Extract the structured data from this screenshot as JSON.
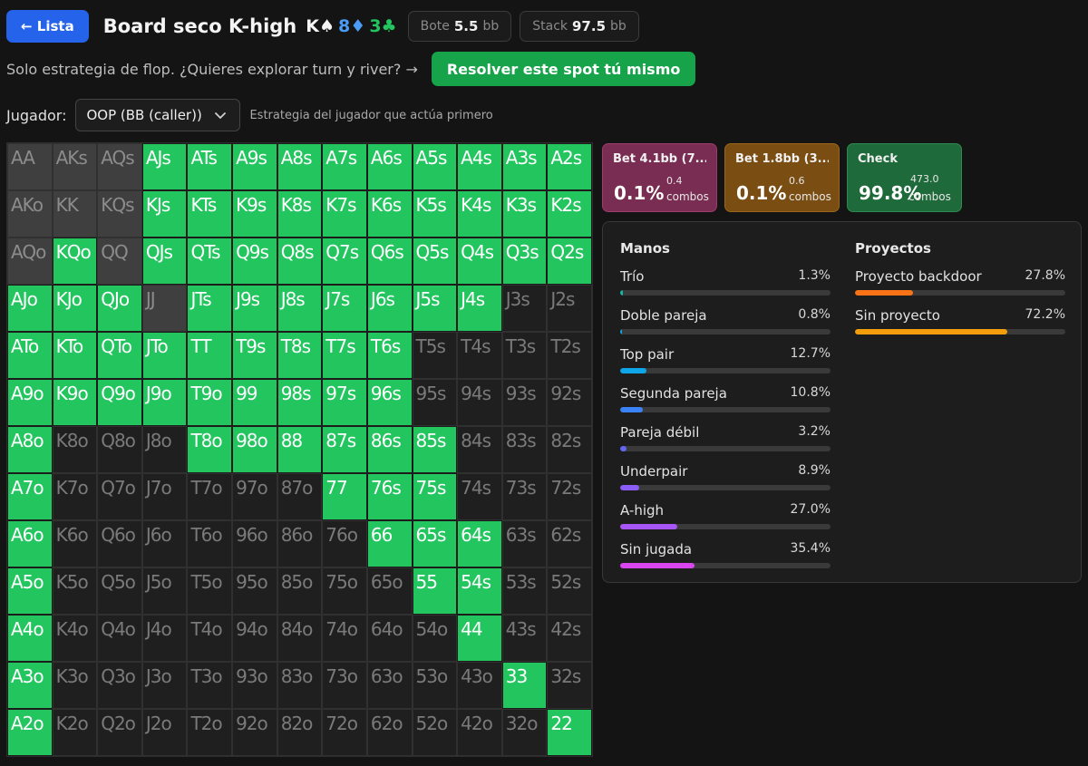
{
  "header": {
    "back_label": "← Lista",
    "title": "Board seco K-high",
    "board": [
      {
        "rank": "K",
        "suit": "♠"
      },
      {
        "rank": "8",
        "suit": "♦"
      },
      {
        "rank": "3",
        "suit": "♣"
      }
    ],
    "pot_label": "Bote",
    "pot_value": "5.5",
    "pot_unit": "bb",
    "stack_label": "Stack",
    "stack_value": "97.5",
    "stack_unit": "bb"
  },
  "promo": {
    "text": "Solo estrategia de flop. ¿Quieres explorar turn y river? →",
    "button_label": "Resolver este spot tú mismo"
  },
  "player": {
    "label": "Jugador:",
    "selected": "OOP (BB (caller))",
    "hint": "Estrategia del jugador que actúa primero"
  },
  "matrix": {
    "rows": [
      [
        [
          "AA",
          "p"
        ],
        [
          "AKs",
          "p"
        ],
        [
          "AQs",
          "p"
        ],
        [
          "AJs",
          "g"
        ],
        [
          "ATs",
          "g"
        ],
        [
          "A9s",
          "g"
        ],
        [
          "A8s",
          "g"
        ],
        [
          "A7s",
          "g"
        ],
        [
          "A6s",
          "g"
        ],
        [
          "A5s",
          "g"
        ],
        [
          "A4s",
          "g"
        ],
        [
          "A3s",
          "g"
        ],
        [
          "A2s",
          "g"
        ]
      ],
      [
        [
          "AKo",
          "p"
        ],
        [
          "KK",
          "p"
        ],
        [
          "KQs",
          "p"
        ],
        [
          "KJs",
          "g"
        ],
        [
          "KTs",
          "g"
        ],
        [
          "K9s",
          "g"
        ],
        [
          "K8s",
          "g"
        ],
        [
          "K7s",
          "g"
        ],
        [
          "K6s",
          "g"
        ],
        [
          "K5s",
          "g"
        ],
        [
          "K4s",
          "g"
        ],
        [
          "K3s",
          "g"
        ],
        [
          "K2s",
          "g"
        ]
      ],
      [
        [
          "AQo",
          "p"
        ],
        [
          "KQo",
          "g"
        ],
        [
          "QQ",
          "p"
        ],
        [
          "QJs",
          "g"
        ],
        [
          "QTs",
          "g"
        ],
        [
          "Q9s",
          "g"
        ],
        [
          "Q8s",
          "g"
        ],
        [
          "Q7s",
          "g"
        ],
        [
          "Q6s",
          "g"
        ],
        [
          "Q5s",
          "g"
        ],
        [
          "Q4s",
          "g"
        ],
        [
          "Q3s",
          "g"
        ],
        [
          "Q2s",
          "g"
        ]
      ],
      [
        [
          "AJo",
          "g"
        ],
        [
          "KJo",
          "g"
        ],
        [
          "QJo",
          "g"
        ],
        [
          "JJ",
          "p"
        ],
        [
          "JTs",
          "g"
        ],
        [
          "J9s",
          "g"
        ],
        [
          "J8s",
          "g"
        ],
        [
          "J7s",
          "g"
        ],
        [
          "J6s",
          "g"
        ],
        [
          "J5s",
          "g"
        ],
        [
          "J4s",
          "g"
        ],
        [
          "J3s",
          "n"
        ],
        [
          "J2s",
          "n"
        ]
      ],
      [
        [
          "ATo",
          "g"
        ],
        [
          "KTo",
          "g"
        ],
        [
          "QTo",
          "g"
        ],
        [
          "JTo",
          "g"
        ],
        [
          "TT",
          "g"
        ],
        [
          "T9s",
          "g"
        ],
        [
          "T8s",
          "g"
        ],
        [
          "T7s",
          "g"
        ],
        [
          "T6s",
          "g"
        ],
        [
          "T5s",
          "n"
        ],
        [
          "T4s",
          "n"
        ],
        [
          "T3s",
          "n"
        ],
        [
          "T2s",
          "n"
        ]
      ],
      [
        [
          "A9o",
          "g"
        ],
        [
          "K9o",
          "g"
        ],
        [
          "Q9o",
          "g"
        ],
        [
          "J9o",
          "g"
        ],
        [
          "T9o",
          "g"
        ],
        [
          "99",
          "g"
        ],
        [
          "98s",
          "g"
        ],
        [
          "97s",
          "g"
        ],
        [
          "96s",
          "g"
        ],
        [
          "95s",
          "n"
        ],
        [
          "94s",
          "n"
        ],
        [
          "93s",
          "n"
        ],
        [
          "92s",
          "n"
        ]
      ],
      [
        [
          "A8o",
          "g"
        ],
        [
          "K8o",
          "n"
        ],
        [
          "Q8o",
          "n"
        ],
        [
          "J8o",
          "n"
        ],
        [
          "T8o",
          "g"
        ],
        [
          "98o",
          "g"
        ],
        [
          "88",
          "g"
        ],
        [
          "87s",
          "g"
        ],
        [
          "86s",
          "g"
        ],
        [
          "85s",
          "g"
        ],
        [
          "84s",
          "n"
        ],
        [
          "83s",
          "n"
        ],
        [
          "82s",
          "n"
        ]
      ],
      [
        [
          "A7o",
          "g"
        ],
        [
          "K7o",
          "n"
        ],
        [
          "Q7o",
          "n"
        ],
        [
          "J7o",
          "n"
        ],
        [
          "T7o",
          "n"
        ],
        [
          "97o",
          "n"
        ],
        [
          "87o",
          "n"
        ],
        [
          "77",
          "g"
        ],
        [
          "76s",
          "g"
        ],
        [
          "75s",
          "g"
        ],
        [
          "74s",
          "n"
        ],
        [
          "73s",
          "n"
        ],
        [
          "72s",
          "n"
        ]
      ],
      [
        [
          "A6o",
          "g"
        ],
        [
          "K6o",
          "n"
        ],
        [
          "Q6o",
          "n"
        ],
        [
          "J6o",
          "n"
        ],
        [
          "T6o",
          "n"
        ],
        [
          "96o",
          "n"
        ],
        [
          "86o",
          "n"
        ],
        [
          "76o",
          "n"
        ],
        [
          "66",
          "g"
        ],
        [
          "65s",
          "g"
        ],
        [
          "64s",
          "g"
        ],
        [
          "63s",
          "n"
        ],
        [
          "62s",
          "n"
        ]
      ],
      [
        [
          "A5o",
          "g"
        ],
        [
          "K5o",
          "n"
        ],
        [
          "Q5o",
          "n"
        ],
        [
          "J5o",
          "n"
        ],
        [
          "T5o",
          "n"
        ],
        [
          "95o",
          "n"
        ],
        [
          "85o",
          "n"
        ],
        [
          "75o",
          "n"
        ],
        [
          "65o",
          "n"
        ],
        [
          "55",
          "g"
        ],
        [
          "54s",
          "g"
        ],
        [
          "53s",
          "n"
        ],
        [
          "52s",
          "n"
        ]
      ],
      [
        [
          "A4o",
          "g"
        ],
        [
          "K4o",
          "n"
        ],
        [
          "Q4o",
          "n"
        ],
        [
          "J4o",
          "n"
        ],
        [
          "T4o",
          "n"
        ],
        [
          "94o",
          "n"
        ],
        [
          "84o",
          "n"
        ],
        [
          "74o",
          "n"
        ],
        [
          "64o",
          "n"
        ],
        [
          "54o",
          "n"
        ],
        [
          "44",
          "g"
        ],
        [
          "43s",
          "n"
        ],
        [
          "42s",
          "n"
        ]
      ],
      [
        [
          "A3o",
          "g"
        ],
        [
          "K3o",
          "n"
        ],
        [
          "Q3o",
          "n"
        ],
        [
          "J3o",
          "n"
        ],
        [
          "T3o",
          "n"
        ],
        [
          "93o",
          "n"
        ],
        [
          "83o",
          "n"
        ],
        [
          "73o",
          "n"
        ],
        [
          "63o",
          "n"
        ],
        [
          "53o",
          "n"
        ],
        [
          "43o",
          "n"
        ],
        [
          "33",
          "g"
        ],
        [
          "32s",
          "n"
        ]
      ],
      [
        [
          "A2o",
          "g"
        ],
        [
          "K2o",
          "n"
        ],
        [
          "Q2o",
          "n"
        ],
        [
          "J2o",
          "n"
        ],
        [
          "T2o",
          "n"
        ],
        [
          "92o",
          "n"
        ],
        [
          "82o",
          "n"
        ],
        [
          "72o",
          "n"
        ],
        [
          "62o",
          "n"
        ],
        [
          "52o",
          "n"
        ],
        [
          "42o",
          "n"
        ],
        [
          "32o",
          "n"
        ],
        [
          "22",
          "g"
        ]
      ]
    ]
  },
  "actions": [
    {
      "name": "Bet 4.1bb (7...",
      "pct": "0.1%",
      "combos": "0.4",
      "combos_label": "combos",
      "color": "#7a2d52"
    },
    {
      "name": "Bet 1.8bb (3...",
      "pct": "0.1%",
      "combos": "0.6",
      "combos_label": "combos",
      "color": "#7a4e12"
    },
    {
      "name": "Check",
      "pct": "99.8%",
      "combos": "473.0",
      "combos_label": "combos",
      "color": "#1f6a3a"
    }
  ],
  "stats": {
    "manos_title": "Manos",
    "manos": [
      {
        "label": "Trío",
        "value": "1.3%",
        "pct": 1.3,
        "color": "#14b8a6"
      },
      {
        "label": "Doble pareja",
        "value": "0.8%",
        "pct": 0.8,
        "color": "#0ea5e9"
      },
      {
        "label": "Top pair",
        "value": "12.7%",
        "pct": 12.7,
        "color": "#0ea5e9"
      },
      {
        "label": "Segunda pareja",
        "value": "10.8%",
        "pct": 10.8,
        "color": "#3b82f6"
      },
      {
        "label": "Pareja débil",
        "value": "3.2%",
        "pct": 3.2,
        "color": "#6366f1"
      },
      {
        "label": "Underpair",
        "value": "8.9%",
        "pct": 8.9,
        "color": "#8b5cf6"
      },
      {
        "label": "A-high",
        "value": "27.0%",
        "pct": 27.0,
        "color": "#a855f7"
      },
      {
        "label": "Sin jugada",
        "value": "35.4%",
        "pct": 35.4,
        "color": "#d946ef"
      }
    ],
    "proyectos_title": "Proyectos",
    "proyectos": [
      {
        "label": "Proyecto backdoor",
        "value": "27.8%",
        "pct": 27.8,
        "color": "#f97316"
      },
      {
        "label": "Sin proyecto",
        "value": "72.2%",
        "pct": 72.2,
        "color": "#f59e0b"
      }
    ]
  }
}
